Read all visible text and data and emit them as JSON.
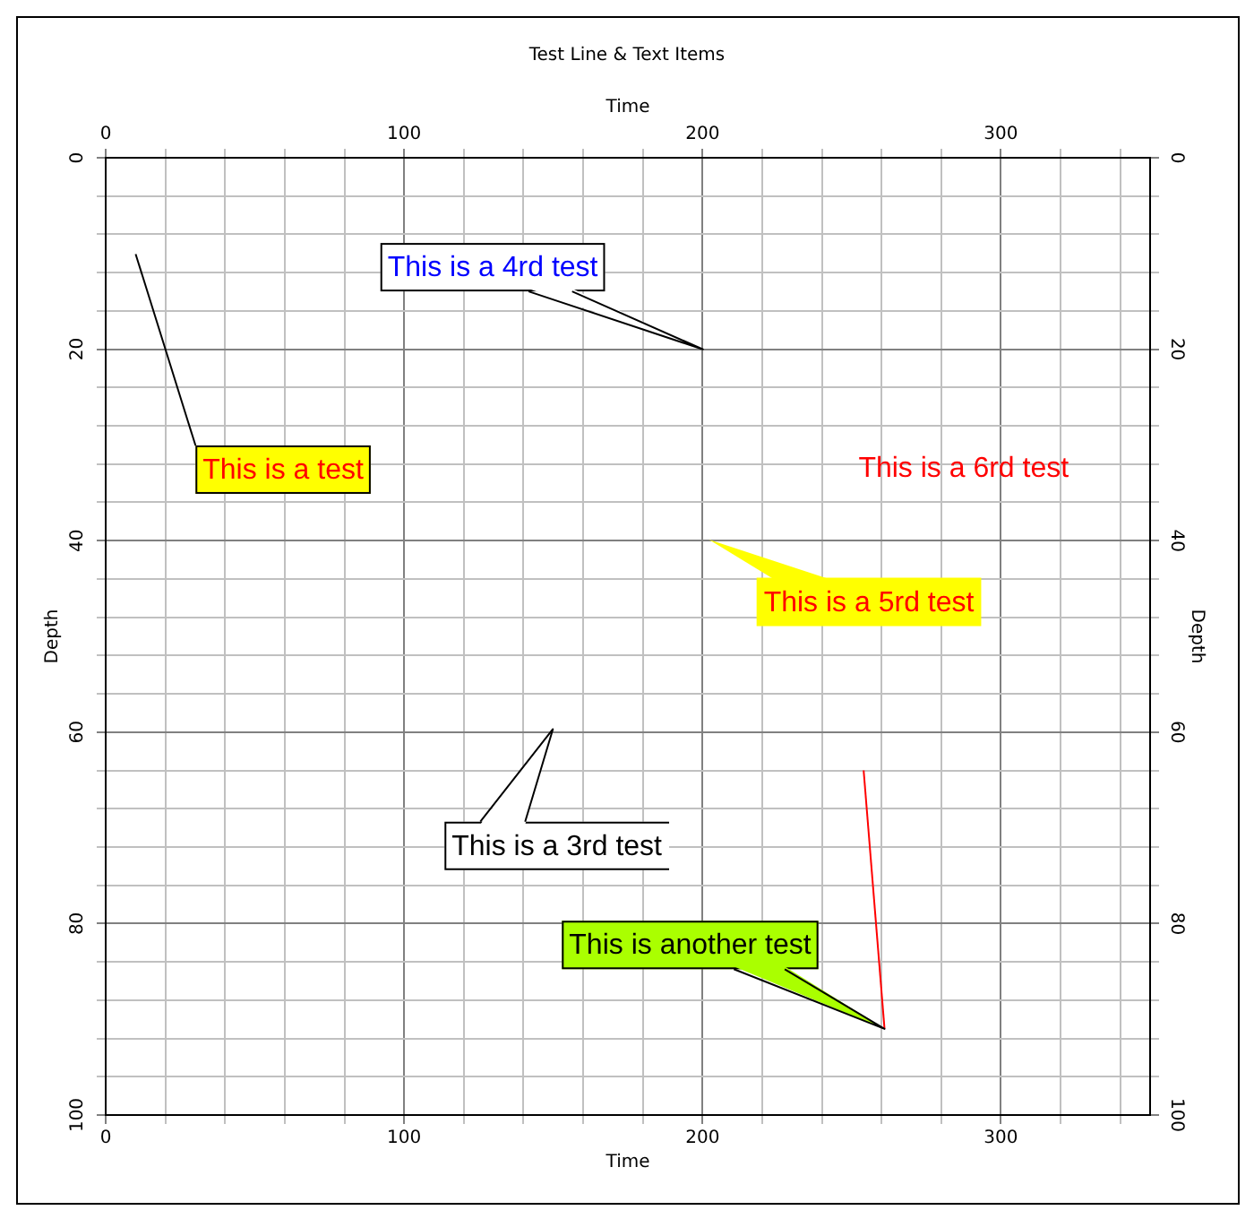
{
  "chart_data": {
    "type": "line",
    "title": "Test Line & Text Items",
    "xlabel": "Time",
    "x2label": "Time",
    "ylabel": "Depth",
    "y2label": "Depth",
    "series": [
      {
        "color": "#ff0000",
        "x": [
          254,
          261
        ],
        "values": [
          64,
          91
        ]
      }
    ],
    "xlim": [
      0,
      350
    ],
    "xticks": [
      0,
      {
        "value": 20,
        "label": null
      },
      {
        "value": 40,
        "label": null
      },
      {
        "value": 60,
        "label": null
      },
      {
        "value": 80,
        "label": null
      },
      100,
      {
        "value": 120,
        "label": null
      },
      {
        "value": 140,
        "label": null
      },
      {
        "value": 160,
        "label": null
      },
      {
        "value": 180,
        "label": null
      },
      200,
      {
        "value": 220,
        "label": null
      },
      {
        "value": 240,
        "label": null
      },
      {
        "value": 260,
        "label": null
      },
      {
        "value": 280,
        "label": null
      },
      300,
      {
        "value": 320,
        "label": null
      },
      {
        "value": 340,
        "label": null
      }
    ],
    "x2lim": [
      0,
      350
    ],
    "x2ticks": [
      0,
      {
        "value": 20,
        "label": null
      },
      {
        "value": 40,
        "label": null
      },
      {
        "value": 60,
        "label": null
      },
      {
        "value": 80,
        "label": null
      },
      100,
      {
        "value": 120,
        "label": null
      },
      {
        "value": 140,
        "label": null
      },
      {
        "value": 160,
        "label": null
      },
      {
        "value": 180,
        "label": null
      },
      200,
      {
        "value": 220,
        "label": null
      },
      {
        "value": 240,
        "label": null
      },
      {
        "value": 260,
        "label": null
      },
      {
        "value": 280,
        "label": null
      },
      300,
      {
        "value": 320,
        "label": null
      },
      {
        "value": 340,
        "label": null
      }
    ],
    "ylim": [
      100,
      0
    ],
    "yticks": [
      0,
      {
        "value": 4,
        "label": null
      },
      {
        "value": 8,
        "label": null
      },
      {
        "value": 12,
        "label": null
      },
      {
        "value": 16,
        "label": null
      },
      20,
      {
        "value": 24,
        "label": null
      },
      {
        "value": 28,
        "label": null
      },
      {
        "value": 32,
        "label": null
      },
      {
        "value": 36,
        "label": null
      },
      40,
      {
        "value": 44,
        "label": null
      },
      {
        "value": 48,
        "label": null
      },
      {
        "value": 52,
        "label": null
      },
      {
        "value": 56,
        "label": null
      },
      60,
      {
        "value": 64,
        "label": null
      },
      {
        "value": 68,
        "label": null
      },
      {
        "value": 72,
        "label": null
      },
      {
        "value": 76,
        "label": null
      },
      80,
      {
        "value": 84,
        "label": null
      },
      {
        "value": 88,
        "label": null
      },
      {
        "value": 92,
        "label": null
      },
      {
        "value": 96,
        "label": null
      },
      100
    ],
    "y2lim": [
      100,
      0
    ],
    "y2ticks": [
      0,
      {
        "value": 4,
        "label": null
      },
      {
        "value": 8,
        "label": null
      },
      {
        "value": 12,
        "label": null
      },
      {
        "value": 16,
        "label": null
      },
      20,
      {
        "value": 24,
        "label": null
      },
      {
        "value": 28,
        "label": null
      },
      {
        "value": 32,
        "label": null
      },
      {
        "value": 36,
        "label": null
      },
      40,
      {
        "value": 44,
        "label": null
      },
      {
        "value": 48,
        "label": null
      },
      {
        "value": 52,
        "label": null
      },
      {
        "value": 56,
        "label": null
      },
      60,
      {
        "value": 64,
        "label": null
      },
      {
        "value": 68,
        "label": null
      },
      {
        "value": 72,
        "label": null
      },
      {
        "value": 76,
        "label": null
      },
      80,
      {
        "value": 84,
        "label": null
      },
      {
        "value": 88,
        "label": null
      },
      {
        "value": 92,
        "label": null
      },
      {
        "value": 96,
        "label": null
      },
      100
    ],
    "grid": true,
    "marker": "none",
    "annotations": [
      "This is a test",
      {
        "text": "This is another test",
        "x": 261,
        "y": 91
      },
      "This is a 3rd test",
      "This is a 4rd test",
      "This is a 5rd test",
      "This is a 6rd test"
    ]
  }
}
